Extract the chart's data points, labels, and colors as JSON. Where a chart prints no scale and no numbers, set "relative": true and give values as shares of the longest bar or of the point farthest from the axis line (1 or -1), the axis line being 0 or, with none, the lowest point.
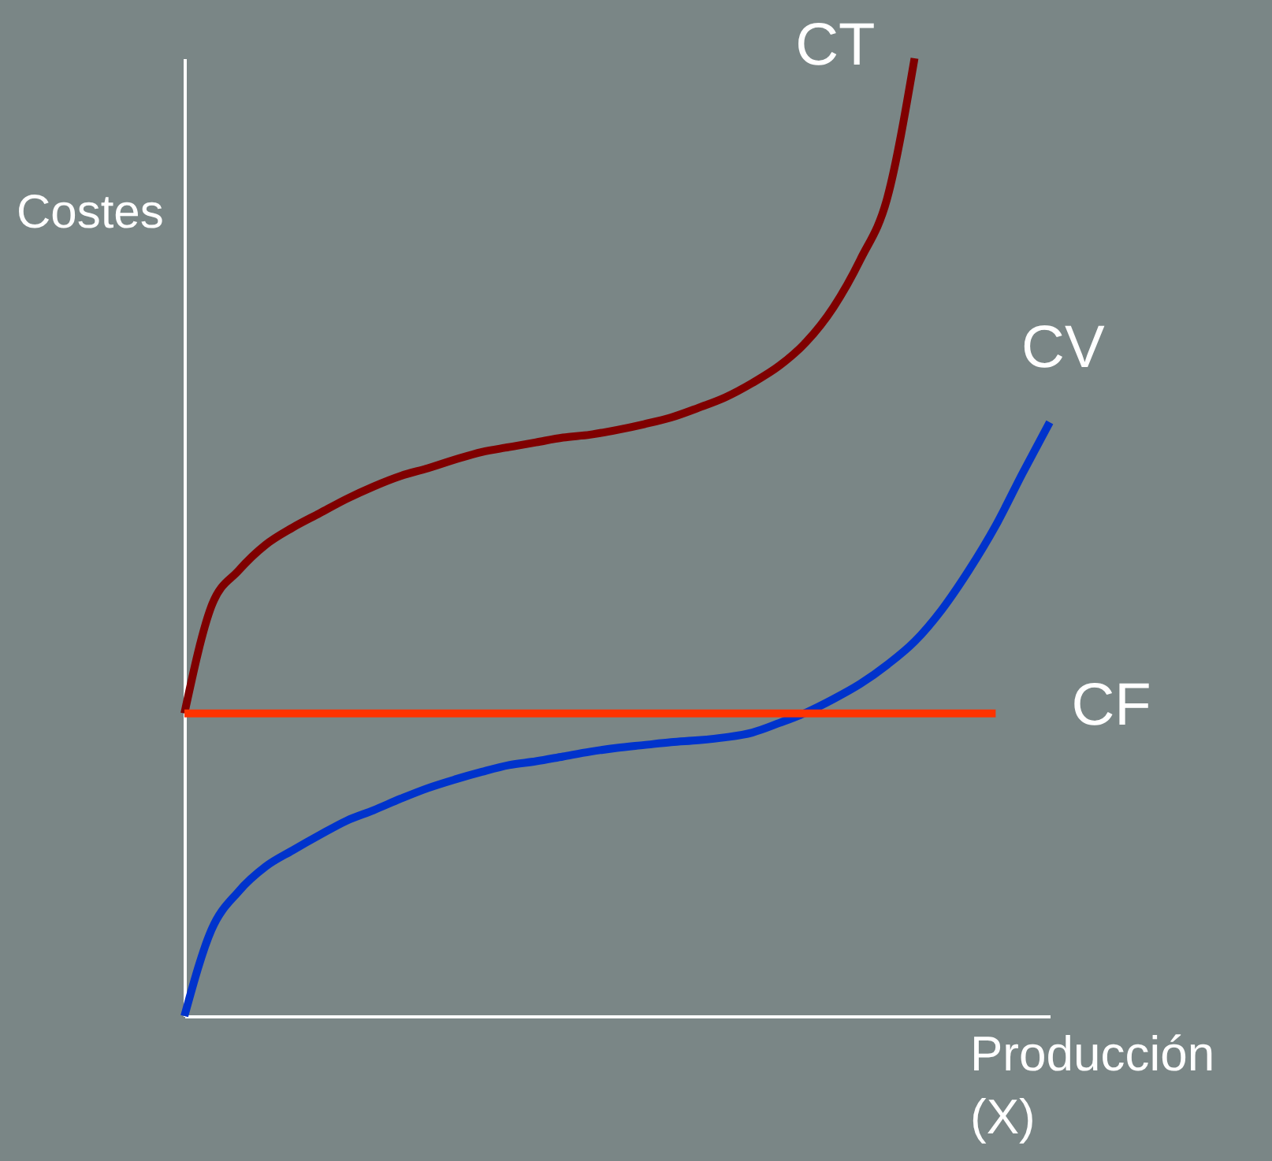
{
  "chart_data": {
    "type": "line",
    "relative": true,
    "xlabel": "Producción (X)",
    "ylabel": "Costes",
    "tick_labels": false,
    "grid": false,
    "marker": "none",
    "line_style": "solid",
    "categories": [
      null,
      null,
      null,
      null,
      null,
      null,
      null,
      null,
      null,
      null,
      null,
      null,
      null,
      null,
      null,
      null,
      null,
      null,
      null,
      null,
      null,
      null,
      null,
      null,
      null,
      null,
      null,
      null,
      null,
      null,
      null,
      null,
      null
    ],
    "series": [
      {
        "name": "CT",
        "color": "#800000",
        "values": [
          0.316,
          0.428,
          0.465,
          0.492,
          0.51,
          0.525,
          0.54,
          0.553,
          0.564,
          0.572,
          0.581,
          0.589,
          0.594,
          0.599,
          0.604,
          0.607,
          0.612,
          0.618,
          0.625,
          0.635,
          0.646,
          0.661,
          0.679,
          0.704,
          0.74,
          0.79,
          0.855,
          1.0,
          null,
          null,
          null,
          null,
          null
        ]
      },
      {
        "name": "CV",
        "color": "#0033cc",
        "values": [
          0,
          0.09,
          0.13,
          0.156,
          0.173,
          0.189,
          0.204,
          0.215,
          0.227,
          0.238,
          0.247,
          0.255,
          0.262,
          0.266,
          0.271,
          0.276,
          0.28,
          0.283,
          0.286,
          0.288,
          0.291,
          0.296,
          0.306,
          0.317,
          0.331,
          0.347,
          0.367,
          0.391,
          0.424,
          0.465,
          0.512,
          0.567,
          0.62
        ]
      },
      {
        "name": "CF",
        "color": "#ff3300",
        "values": [
          0.316,
          0.316,
          0.316,
          0.316,
          0.316,
          0.316,
          0.316,
          0.316,
          0.316,
          0.316,
          0.316,
          0.316,
          0.316,
          0.316,
          0.316,
          0.316,
          0.316,
          0.316,
          0.316,
          0.316,
          0.316,
          0.316,
          0.316,
          0.316,
          0.316,
          0.316,
          0.316,
          0.316,
          0.316,
          0.316,
          0.316,
          null,
          null
        ]
      }
    ]
  }
}
